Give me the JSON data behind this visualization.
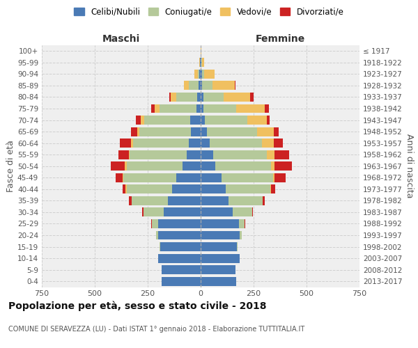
{
  "age_groups": [
    "100+",
    "95-99",
    "90-94",
    "85-89",
    "80-84",
    "75-79",
    "70-74",
    "65-69",
    "60-64",
    "55-59",
    "50-54",
    "45-49",
    "40-44",
    "35-39",
    "30-34",
    "25-29",
    "20-24",
    "15-19",
    "10-14",
    "5-9",
    "0-4"
  ],
  "birth_years": [
    "≤ 1917",
    "1918-1922",
    "1923-1927",
    "1928-1932",
    "1933-1937",
    "1938-1942",
    "1943-1947",
    "1948-1952",
    "1953-1957",
    "1958-1962",
    "1963-1967",
    "1968-1972",
    "1973-1977",
    "1978-1982",
    "1983-1987",
    "1988-1992",
    "1993-1997",
    "1998-2002",
    "2003-2007",
    "2008-2012",
    "2013-2017"
  ],
  "colors": {
    "celibi": "#4a7ab5",
    "coniugati": "#b5c99a",
    "vedovi": "#f0c060",
    "divorziati": "#cc2222"
  },
  "males": {
    "celibi": [
      0,
      2,
      5,
      10,
      15,
      20,
      50,
      45,
      55,
      65,
      85,
      115,
      135,
      155,
      175,
      200,
      200,
      190,
      200,
      185,
      185
    ],
    "coniugati": [
      0,
      2,
      8,
      45,
      100,
      175,
      215,
      245,
      265,
      270,
      265,
      250,
      215,
      170,
      95,
      30,
      12,
      4,
      0,
      0,
      0
    ],
    "vedovi": [
      0,
      3,
      18,
      25,
      28,
      22,
      18,
      10,
      8,
      5,
      8,
      5,
      5,
      0,
      0,
      0,
      0,
      0,
      0,
      0,
      0
    ],
    "divorziati": [
      0,
      0,
      0,
      0,
      5,
      18,
      22,
      28,
      52,
      48,
      65,
      30,
      15,
      15,
      5,
      2,
      0,
      0,
      0,
      0,
      0
    ]
  },
  "females": {
    "nubili": [
      0,
      2,
      5,
      8,
      12,
      12,
      20,
      30,
      42,
      60,
      70,
      100,
      120,
      130,
      150,
      180,
      185,
      170,
      185,
      165,
      168
    ],
    "coniugate": [
      0,
      3,
      12,
      48,
      95,
      155,
      200,
      235,
      248,
      252,
      262,
      242,
      208,
      162,
      92,
      28,
      10,
      3,
      0,
      0,
      0
    ],
    "vedove": [
      2,
      12,
      50,
      105,
      125,
      135,
      92,
      82,
      55,
      38,
      18,
      8,
      5,
      0,
      0,
      0,
      0,
      0,
      0,
      0,
      0
    ],
    "divorziate": [
      0,
      0,
      0,
      5,
      18,
      20,
      15,
      22,
      42,
      68,
      80,
      52,
      18,
      10,
      5,
      2,
      0,
      0,
      0,
      0,
      0
    ]
  },
  "xlim": 750,
  "title": "Popolazione per età, sesso e stato civile - 2018",
  "subtitle": "COMUNE DI SERAVEZZA (LU) - Dati ISTAT 1° gennaio 2018 - Elaborazione TUTTITALIA.IT",
  "ylabel_left": "Fasce di età",
  "ylabel_right": "Anni di nascita",
  "xlabel_left": "Maschi",
  "xlabel_right": "Femmine",
  "bg_color": "#efefef",
  "grid_color": "#cccccc"
}
